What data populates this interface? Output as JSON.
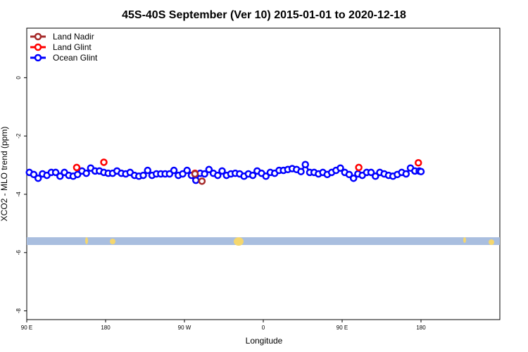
{
  "chart_data": {
    "type": "line",
    "title": "45S-40S September (Ver 10)   2015-01-01 to 2020-12-18",
    "xlabel": "Longitude",
    "ylabel": "XCO2 - MLO trend (ppm)",
    "xlim": [
      -90,
      180
    ],
    "ylim": [
      -8.3,
      1.7
    ],
    "x_ticks": [
      {
        "value": -90,
        "label": "90 E"
      },
      {
        "value": -45,
        "label": "180"
      },
      {
        "value": 0,
        "label": "90 W"
      },
      {
        "value": 45,
        "label": "0"
      },
      {
        "value": 90,
        "label": "90 E"
      },
      {
        "value": 135,
        "label": "180"
      }
    ],
    "y_ticks": [
      0,
      -2,
      -4,
      -6,
      -8
    ],
    "grid": false,
    "legend_position": "top-left",
    "series": [
      {
        "name": "Land Nadir",
        "color": "#a52a2a",
        "x": [
          6,
          10
        ],
        "y": [
          -3.3,
          -3.55
        ]
      },
      {
        "name": "Land Glint",
        "color": "#ff0000",
        "x": [
          -61.5,
          -46,
          6,
          99.5,
          133.5
        ],
        "y": [
          -3.08,
          -2.9,
          -3.28,
          -3.08,
          -2.92
        ]
      },
      {
        "name": "Ocean Glint",
        "color": "#0000ff",
        "x": [
          -88.5,
          -86,
          -83.5,
          -81,
          -78.5,
          -76,
          -73.5,
          -71,
          -68.5,
          -66,
          -63.5,
          -61,
          -58.5,
          -56,
          -53.5,
          -51,
          -48.5,
          -46,
          -43.5,
          -41,
          -38.5,
          -36,
          -33.5,
          -31,
          -28.5,
          -26,
          -23.5,
          -21,
          -18.5,
          -16,
          -13.5,
          -11,
          -8.5,
          -6,
          -3.5,
          -1,
          1.5,
          4,
          6.5,
          9,
          11.5,
          14,
          16.5,
          19,
          21.5,
          24,
          26.5,
          29,
          31.5,
          34,
          36.5,
          39,
          41.5,
          44,
          46.5,
          49,
          51.5,
          54,
          56.5,
          59,
          61.5,
          64,
          66.5,
          69,
          71.5,
          74,
          76.5,
          79,
          81.5,
          84,
          86.5,
          89,
          91.5,
          94,
          96.5,
          99,
          101.5,
          104,
          106.5,
          109,
          111.5,
          114,
          116.5,
          119,
          121.5,
          124,
          126.5,
          129,
          131.5,
          134,
          135
        ],
        "y": [
          -3.25,
          -3.32,
          -3.45,
          -3.3,
          -3.35,
          -3.25,
          -3.25,
          -3.38,
          -3.25,
          -3.35,
          -3.38,
          -3.32,
          -3.2,
          -3.28,
          -3.1,
          -3.2,
          -3.2,
          -3.25,
          -3.28,
          -3.28,
          -3.2,
          -3.28,
          -3.3,
          -3.25,
          -3.35,
          -3.38,
          -3.35,
          -3.18,
          -3.35,
          -3.3,
          -3.3,
          -3.3,
          -3.3,
          -3.18,
          -3.35,
          -3.3,
          -3.18,
          -3.35,
          -3.52,
          -3.28,
          -3.3,
          -3.15,
          -3.28,
          -3.35,
          -3.2,
          -3.35,
          -3.3,
          -3.28,
          -3.3,
          -3.38,
          -3.3,
          -3.35,
          -3.2,
          -3.28,
          -3.38,
          -3.25,
          -3.28,
          -3.18,
          -3.18,
          -3.15,
          -3.12,
          -3.15,
          -3.22,
          -2.98,
          -3.25,
          -3.25,
          -3.3,
          -3.25,
          -3.32,
          -3.25,
          -3.18,
          -3.1,
          -3.25,
          -3.32,
          -3.45,
          -3.3,
          -3.35,
          -3.25,
          -3.25,
          -3.38,
          -3.25,
          -3.3,
          -3.35,
          -3.38,
          -3.32,
          -3.25,
          -3.3,
          -3.1,
          -3.2,
          -3.2,
          -3.22
        ]
      }
    ]
  }
}
